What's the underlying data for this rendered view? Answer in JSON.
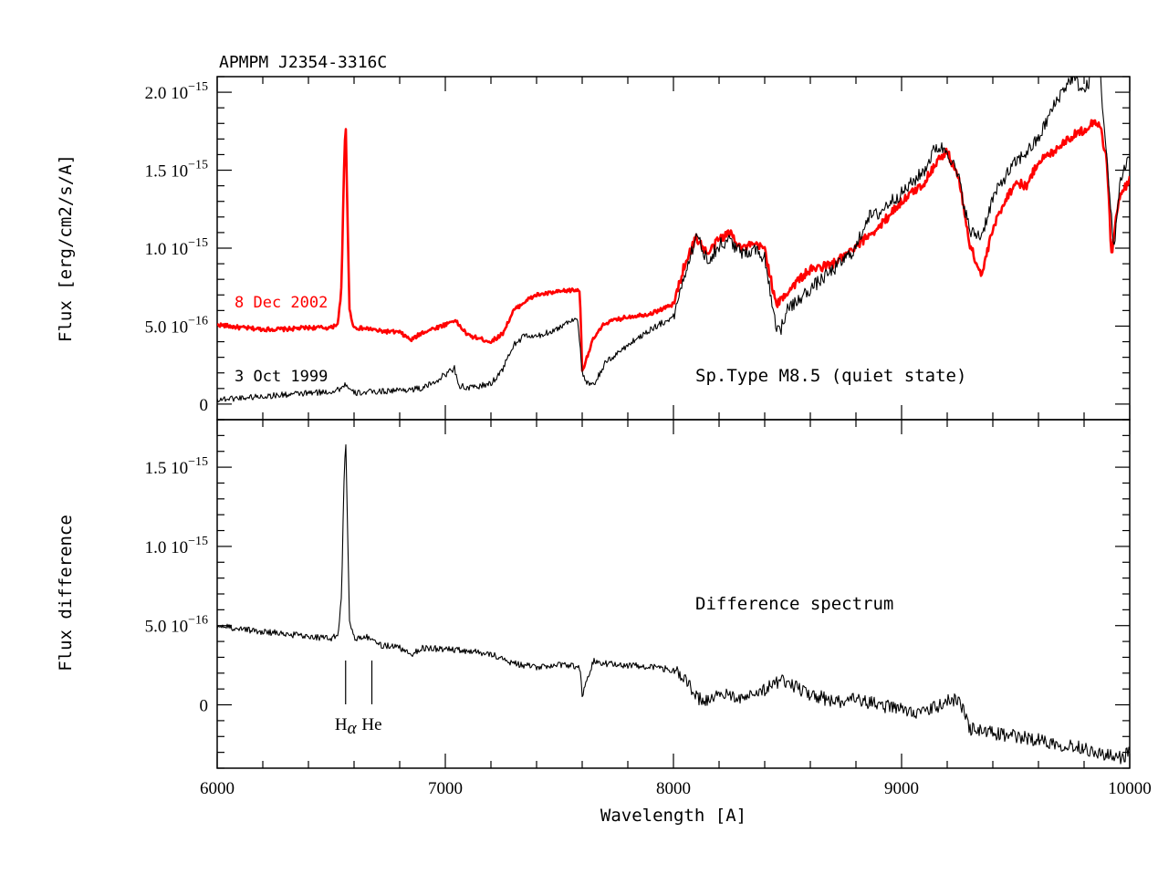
{
  "chart_data": [
    {
      "type": "line",
      "title": "APMPM J2354-3316C",
      "ylabel": "Flux [erg/cm2/s/A]",
      "xlim": [
        6000,
        10000
      ],
      "ylim": [
        -1e-16,
        2.1e-15
      ],
      "y_ticks": [
        {
          "value": 0,
          "label": "0",
          "exp": ""
        },
        {
          "value": 5e-16,
          "label": "5.0 10",
          "exp": "−16"
        },
        {
          "value": 1e-15,
          "label": "1.0 10",
          "exp": "−15"
        },
        {
          "value": 1.5e-15,
          "label": "1.5 10",
          "exp": "−15"
        },
        {
          "value": 2e-15,
          "label": "2.0 10",
          "exp": "−15"
        }
      ],
      "annotation": "Sp.Type M8.5 (quiet state)",
      "series": [
        {
          "name": "8 Dec 2002",
          "color": "#ff0000",
          "x": [
            6000,
            6100,
            6200,
            6300,
            6400,
            6500,
            6530,
            6545,
            6555,
            6563,
            6570,
            6580,
            6600,
            6680,
            6700,
            6800,
            6850,
            6900,
            7000,
            7040,
            7100,
            7200,
            7250,
            7300,
            7350,
            7400,
            7500,
            7550,
            7590,
            7600,
            7620,
            7650,
            7700,
            7800,
            7900,
            8000,
            8050,
            8100,
            8150,
            8200,
            8250,
            8300,
            8350,
            8400,
            8450,
            8500,
            8550,
            8600,
            8700,
            8800,
            8850,
            8900,
            8950,
            9000,
            9100,
            9150,
            9200,
            9250,
            9300,
            9350,
            9400,
            9450,
            9500,
            9550,
            9600,
            9650,
            9700,
            9750,
            9800,
            9850,
            9870,
            9900,
            9920,
            9950,
            10000
          ],
          "y": [
            5.1e-16,
            4.9e-16,
            4.8e-16,
            4.8e-16,
            4.9e-16,
            4.9e-16,
            5.2e-16,
            7.5e-16,
            1.45e-15,
            1.84e-15,
            1.3e-15,
            6e-16,
            4.9e-16,
            4.8e-16,
            4.7e-16,
            4.6e-16,
            4.1e-16,
            4.6e-16,
            5.1e-16,
            5.4e-16,
            4.4e-16,
            4e-16,
            4.5e-16,
            6e-16,
            6.6e-16,
            7e-16,
            7.2e-16,
            7.3e-16,
            7.3e-16,
            2.1e-16,
            3e-16,
            4.2e-16,
            5.2e-16,
            5.6e-16,
            5.8e-16,
            6.4e-16,
            9e-16,
            1.07e-15,
            9.6e-16,
            1.06e-15,
            1.1e-15,
            1e-15,
            1.02e-15,
            1e-15,
            6.3e-16,
            7.2e-16,
            8e-16,
            8.6e-16,
            9e-16,
            1e-15,
            1.08e-15,
            1.13e-15,
            1.22e-15,
            1.3e-15,
            1.42e-15,
            1.55e-15,
            1.62e-15,
            1.45e-15,
            1.02e-15,
            8.2e-16,
            1.12e-15,
            1.3e-15,
            1.42e-15,
            1.4e-15,
            1.56e-15,
            1.6e-15,
            1.67e-15,
            1.72e-15,
            1.76e-15,
            1.82e-15,
            1.78e-15,
            1.56e-15,
            9.5e-16,
            1.3e-15,
            1.45e-15
          ]
        },
        {
          "name": "3 Oct 1999",
          "color": "#000000",
          "x": [
            6000,
            6100,
            6200,
            6300,
            6400,
            6500,
            6540,
            6563,
            6580,
            6600,
            6700,
            6800,
            6900,
            6950,
            7000,
            7040,
            7060,
            7100,
            7200,
            7250,
            7300,
            7350,
            7400,
            7500,
            7550,
            7580,
            7600,
            7620,
            7650,
            7700,
            7800,
            7900,
            8000,
            8050,
            8100,
            8150,
            8200,
            8250,
            8300,
            8350,
            8400,
            8450,
            8470,
            8500,
            8600,
            8700,
            8800,
            8850,
            8900,
            8950,
            9000,
            9100,
            9150,
            9200,
            9250,
            9300,
            9350,
            9400,
            9450,
            9500,
            9550,
            9600,
            9650,
            9700,
            9750,
            9800,
            9850,
            9870,
            9900,
            9930,
            9960,
            10000
          ],
          "y": [
            3e-17,
            4e-17,
            5e-17,
            6e-17,
            7e-17,
            8e-17,
            1e-16,
            1.3e-16,
            9e-17,
            7e-17,
            8e-17,
            9e-17,
            1e-16,
            1.4e-16,
            1.9e-16,
            2.3e-16,
            1.2e-16,
            1e-16,
            1.3e-16,
            2.2e-16,
            3.8e-16,
            4.4e-16,
            4.3e-16,
            4.9e-16,
            5.4e-16,
            5.5e-16,
            2e-16,
            1.3e-16,
            1.2e-16,
            2.6e-16,
            3.8e-16,
            4.8e-16,
            5.6e-16,
            8.4e-16,
            1.08e-15,
            9.2e-16,
            1.02e-15,
            1.05e-15,
            9.6e-16,
            1e-15,
            9.4e-16,
            5e-16,
            4.8e-16,
            6e-16,
            7.4e-16,
            8.6e-16,
            1e-15,
            1.2e-15,
            1.22e-15,
            1.3e-15,
            1.35e-15,
            1.5e-15,
            1.65e-15,
            1.63e-15,
            1.45e-15,
            1.1e-15,
            1.08e-15,
            1.32e-15,
            1.45e-15,
            1.55e-15,
            1.62e-15,
            1.7e-15,
            1.86e-15,
            2e-15,
            2.1e-15,
            2e-15,
            2.16e-15,
            2.13e-15,
            1.55e-15,
            1e-15,
            1.45e-15,
            1.6e-15
          ]
        }
      ]
    },
    {
      "type": "line",
      "title": "",
      "xlabel": "Wavelength [A]",
      "ylabel": "Flux difference",
      "xlim": [
        6000,
        10000
      ],
      "ylim": [
        -4e-16,
        1.8e-15
      ],
      "x_ticks": [
        6000,
        7000,
        8000,
        9000,
        10000
      ],
      "y_ticks": [
        {
          "value": 0,
          "label": "0",
          "exp": ""
        },
        {
          "value": 5e-16,
          "label": "5.0 10",
          "exp": "−16"
        },
        {
          "value": 1e-15,
          "label": "1.0 10",
          "exp": "−15"
        },
        {
          "value": 1.5e-15,
          "label": "1.5 10",
          "exp": "−15"
        }
      ],
      "annotation": "Difference spectrum",
      "line_marks": [
        {
          "label": "H",
          "sub": "α",
          "x": 6563
        },
        {
          "label": "He",
          "sub": "",
          "x": 6678
        }
      ],
      "series": [
        {
          "name": "",
          "color": "#000000",
          "x": [
            6000,
            6100,
            6200,
            6300,
            6400,
            6500,
            6530,
            6545,
            6555,
            6563,
            6570,
            6580,
            6600,
            6678,
            6700,
            6800,
            6850,
            6900,
            7000,
            7100,
            7200,
            7300,
            7400,
            7500,
            7590,
            7600,
            7620,
            7650,
            7700,
            7800,
            7900,
            8000,
            8050,
            8100,
            8150,
            8200,
            8300,
            8400,
            8450,
            8500,
            8550,
            8600,
            8700,
            8800,
            8900,
            9000,
            9100,
            9200,
            9250,
            9300,
            9400,
            9500,
            9600,
            9700,
            9800,
            9850,
            9900,
            9950,
            10000
          ],
          "y": [
            5e-16,
            4.8e-16,
            4.6e-16,
            4.5e-16,
            4.3e-16,
            4.2e-16,
            4.4e-16,
            7e-16,
            1.35e-15,
            1.7e-15,
            1.2e-15,
            5.2e-16,
            4.2e-16,
            4.3e-16,
            3.8e-16,
            3.6e-16,
            3.2e-16,
            3.6e-16,
            3.5e-16,
            3.4e-16,
            3.2e-16,
            2.6e-16,
            2.4e-16,
            2.5e-16,
            2.4e-16,
            6e-17,
            1.6e-16,
            2.8e-16,
            2.6e-16,
            2.5e-16,
            2.4e-16,
            2.2e-16,
            1.6e-16,
            5e-17,
            2e-17,
            6e-17,
            5e-17,
            1e-16,
            1.4e-16,
            1.5e-16,
            1e-16,
            7e-17,
            2e-17,
            3e-17,
            0.0,
            -3e-17,
            -5e-17,
            2e-17,
            4e-17,
            -1.5e-16,
            -1.8e-16,
            -2e-16,
            -2.2e-16,
            -2.5e-16,
            -2.7e-16,
            -3e-16,
            -3.2e-16,
            -3.4e-16,
            -3e-16
          ]
        }
      ]
    }
  ]
}
